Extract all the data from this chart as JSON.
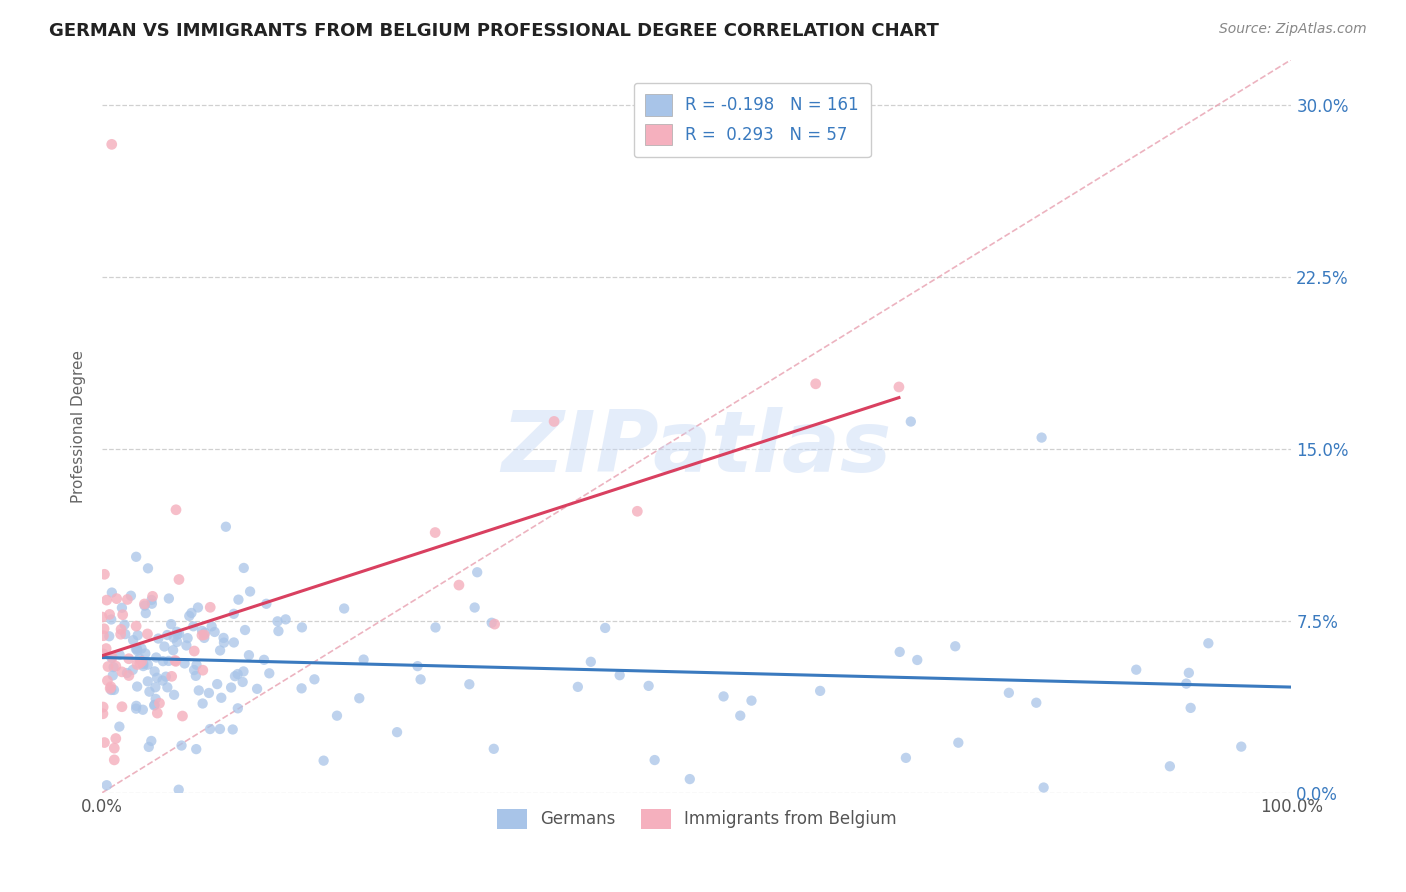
{
  "title": "GERMAN VS IMMIGRANTS FROM BELGIUM PROFESSIONAL DEGREE CORRELATION CHART",
  "source": "Source: ZipAtlas.com",
  "ylabel": "Professional Degree",
  "watermark": "ZIPatlas",
  "legend_blue_R": "-0.198",
  "legend_blue_N": "161",
  "legend_pink_R": "0.293",
  "legend_pink_N": "57",
  "legend_label_blue": "Germans",
  "legend_label_pink": "Immigrants from Belgium",
  "blue_color": "#a8c4e8",
  "pink_color": "#f5b0be",
  "trend_blue_color": "#3a7abf",
  "trend_pink_color": "#d94060",
  "diag_color": "#e8a0b0",
  "xlim": [
    0.0,
    1.0
  ],
  "ylim": [
    0.0,
    0.32
  ],
  "ytick_labels": [
    "0.0%",
    "7.5%",
    "15.0%",
    "22.5%",
    "30.0%"
  ],
  "ytick_values": [
    0.0,
    0.075,
    0.15,
    0.225,
    0.3
  ],
  "background_color": "#ffffff",
  "grid_color": "#d0d0d0"
}
